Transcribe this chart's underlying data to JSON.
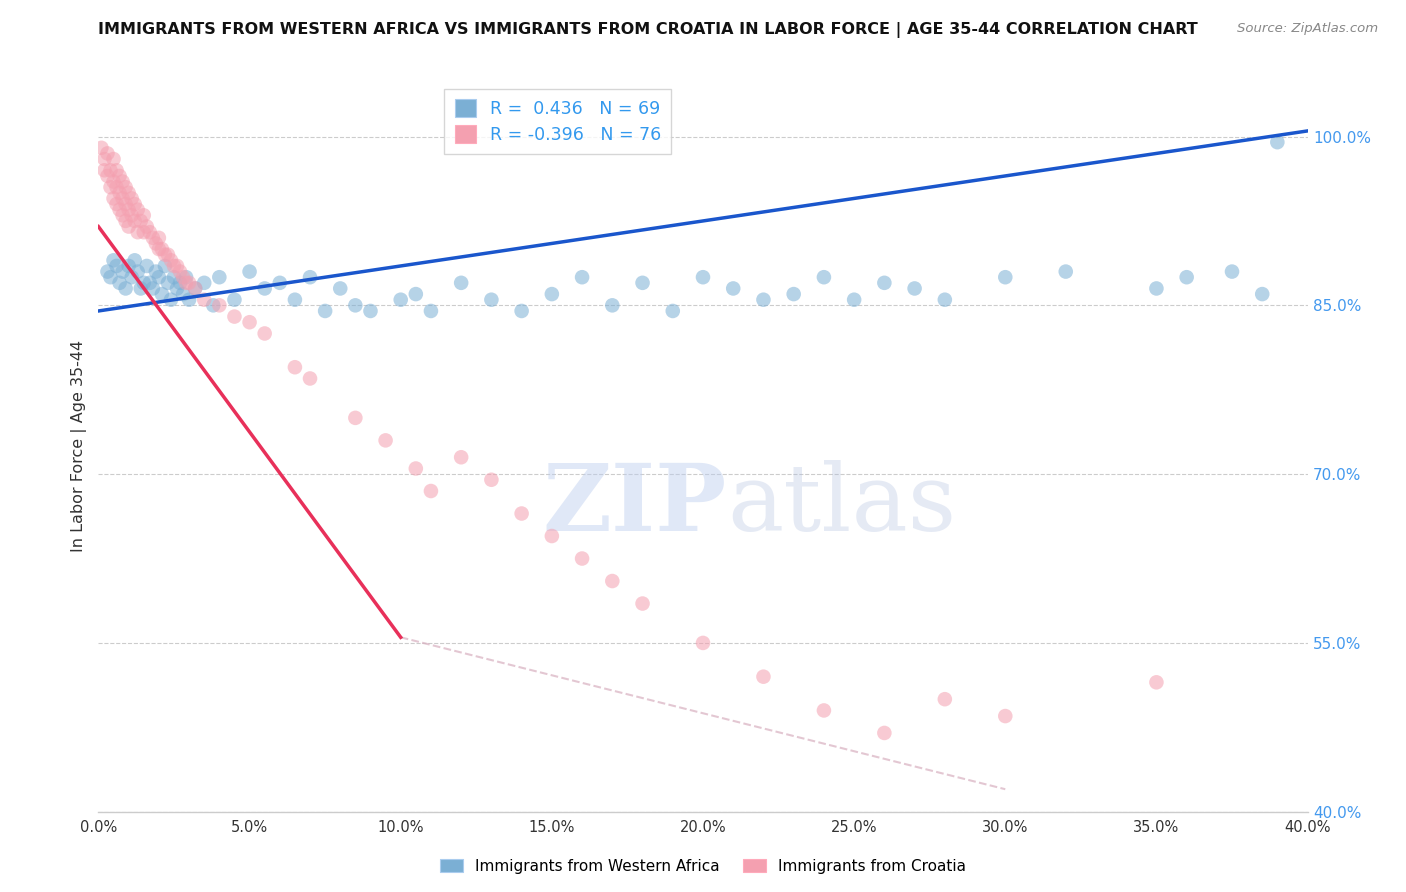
{
  "title": "IMMIGRANTS FROM WESTERN AFRICA VS IMMIGRANTS FROM CROATIA IN LABOR FORCE | AGE 35-44 CORRELATION CHART",
  "source_text": "Source: ZipAtlas.com",
  "ylabel": "In Labor Force | Age 35-44",
  "legend_label_blue": "Immigrants from Western Africa",
  "legend_label_pink": "Immigrants from Croatia",
  "R_blue": 0.436,
  "N_blue": 69,
  "R_pink": -0.396,
  "N_pink": 76,
  "xmin": 0.0,
  "xmax": 40.0,
  "ymin": 40.0,
  "ymax": 105.0,
  "yticks": [
    40.0,
    55.0,
    70.0,
    85.0,
    100.0
  ],
  "ytick_labels": [
    "40.0%",
    "55.0%",
    "70.0%",
    "85.0%",
    "100.0%"
  ],
  "xticks": [
    0.0,
    5.0,
    10.0,
    15.0,
    20.0,
    25.0,
    30.0,
    35.0,
    40.0
  ],
  "color_blue": "#7BAFD4",
  "color_pink": "#F4A0B0",
  "trend_blue": "#1A56CC",
  "trend_pink": "#E8305A",
  "trend_dash_color": "#D8B0C0",
  "watermark_zip": "ZIP",
  "watermark_atlas": "atlas",
  "blue_trend_x0": 0.0,
  "blue_trend_y0": 84.5,
  "blue_trend_x1": 40.0,
  "blue_trend_y1": 100.5,
  "pink_trend_x0": 0.0,
  "pink_trend_y0": 92.0,
  "pink_trend_x1": 10.0,
  "pink_trend_y1": 55.5,
  "pink_dash_x0": 10.0,
  "pink_dash_y0": 55.5,
  "pink_dash_x1": 30.0,
  "pink_dash_y1": 42.0,
  "blue_scatter_x": [
    0.3,
    0.4,
    0.5,
    0.6,
    0.7,
    0.8,
    0.9,
    1.0,
    1.1,
    1.2,
    1.3,
    1.4,
    1.5,
    1.6,
    1.7,
    1.8,
    1.9,
    2.0,
    2.1,
    2.2,
    2.3,
    2.4,
    2.5,
    2.6,
    2.7,
    2.8,
    2.9,
    3.0,
    3.2,
    3.5,
    3.8,
    4.0,
    4.5,
    5.0,
    5.5,
    6.0,
    6.5,
    7.0,
    7.5,
    8.0,
    8.5,
    9.0,
    10.0,
    10.5,
    11.0,
    12.0,
    13.0,
    14.0,
    15.0,
    16.0,
    17.0,
    18.0,
    19.0,
    20.0,
    21.0,
    22.0,
    23.0,
    24.0,
    25.0,
    26.0,
    27.0,
    28.0,
    30.0,
    32.0,
    35.0,
    36.0,
    37.5,
    38.5,
    39.0
  ],
  "blue_scatter_y": [
    88.0,
    87.5,
    89.0,
    88.5,
    87.0,
    88.0,
    86.5,
    88.5,
    87.5,
    89.0,
    88.0,
    86.5,
    87.0,
    88.5,
    87.0,
    86.5,
    88.0,
    87.5,
    86.0,
    88.5,
    87.0,
    85.5,
    87.5,
    86.5,
    87.0,
    86.0,
    87.5,
    85.5,
    86.5,
    87.0,
    85.0,
    87.5,
    85.5,
    88.0,
    86.5,
    87.0,
    85.5,
    87.5,
    84.5,
    86.5,
    85.0,
    84.5,
    85.5,
    86.0,
    84.5,
    87.0,
    85.5,
    84.5,
    86.0,
    87.5,
    85.0,
    87.0,
    84.5,
    87.5,
    86.5,
    85.5,
    86.0,
    87.5,
    85.5,
    87.0,
    86.5,
    85.5,
    87.5,
    88.0,
    86.5,
    87.5,
    88.0,
    86.0,
    99.5
  ],
  "pink_scatter_x": [
    0.1,
    0.2,
    0.2,
    0.3,
    0.3,
    0.4,
    0.4,
    0.5,
    0.5,
    0.5,
    0.6,
    0.6,
    0.6,
    0.7,
    0.7,
    0.7,
    0.8,
    0.8,
    0.8,
    0.9,
    0.9,
    0.9,
    1.0,
    1.0,
    1.0,
    1.1,
    1.1,
    1.2,
    1.2,
    1.3,
    1.3,
    1.4,
    1.5,
    1.5,
    1.6,
    1.7,
    1.8,
    1.9,
    2.0,
    2.0,
    2.1,
    2.2,
    2.3,
    2.4,
    2.5,
    2.6,
    2.7,
    2.8,
    2.9,
    3.0,
    3.2,
    3.5,
    4.0,
    4.5,
    5.0,
    5.5,
    6.5,
    7.0,
    8.5,
    9.5,
    10.5,
    11.0,
    12.0,
    13.0,
    14.0,
    15.0,
    16.0,
    17.0,
    18.0,
    20.0,
    22.0,
    24.0,
    26.0,
    28.0,
    30.0,
    35.0
  ],
  "pink_scatter_y": [
    99.0,
    98.0,
    97.0,
    98.5,
    96.5,
    97.0,
    95.5,
    98.0,
    96.0,
    94.5,
    97.0,
    95.5,
    94.0,
    96.5,
    95.0,
    93.5,
    96.0,
    94.5,
    93.0,
    95.5,
    94.0,
    92.5,
    95.0,
    93.5,
    92.0,
    94.5,
    93.0,
    94.0,
    92.5,
    93.5,
    91.5,
    92.5,
    93.0,
    91.5,
    92.0,
    91.5,
    91.0,
    90.5,
    91.0,
    90.0,
    90.0,
    89.5,
    89.5,
    89.0,
    88.5,
    88.5,
    88.0,
    87.5,
    87.0,
    87.0,
    86.5,
    85.5,
    85.0,
    84.0,
    83.5,
    82.5,
    79.5,
    78.5,
    75.0,
    73.0,
    70.5,
    68.5,
    71.5,
    69.5,
    66.5,
    64.5,
    62.5,
    60.5,
    58.5,
    55.0,
    52.0,
    49.0,
    47.0,
    50.0,
    48.5,
    51.5
  ]
}
